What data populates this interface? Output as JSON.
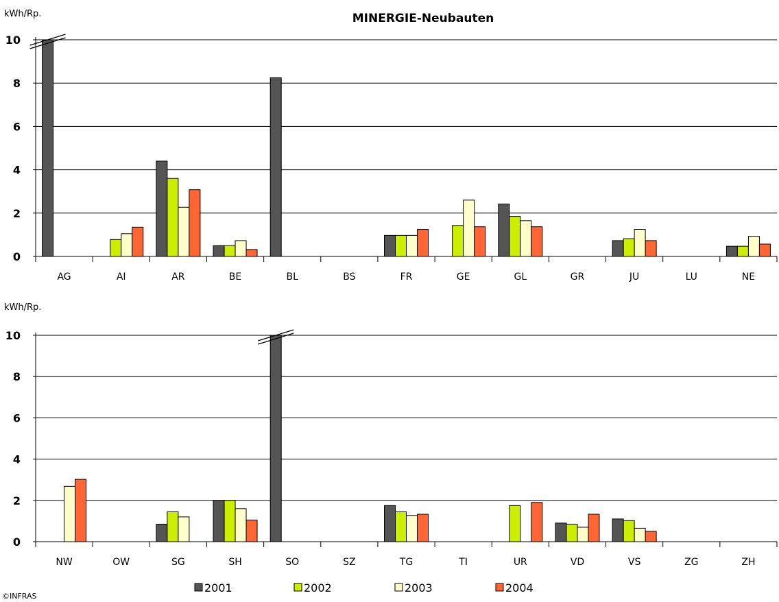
{
  "title": "MINERGIE-Neubauten",
  "credit": "©INFRAS",
  "colors": {
    "2001": "#555555",
    "2002": "#ccee00",
    "2003": "#ffffcc",
    "2004": "#ff6633"
  },
  "chart_data": [
    {
      "type": "bar",
      "title": "MINERGIE-Neubauten",
      "ylabel": "kWh/Rp.",
      "ylim": [
        0,
        10
      ],
      "yticks": [
        0,
        2,
        4,
        6,
        8,
        10
      ],
      "grid": true,
      "axis_break_on_tallest": true,
      "categories": [
        "AG",
        "AI",
        "AR",
        "BE",
        "BL",
        "BS",
        "FR",
        "GE",
        "GL",
        "GR",
        "JU",
        "LU",
        "NE"
      ],
      "series": [
        {
          "name": "2001",
          "values": [
            10.0,
            0,
            4.4,
            0.5,
            8.25,
            0,
            0.97,
            0,
            2.42,
            0,
            0.73,
            0,
            0.47
          ]
        },
        {
          "name": "2002",
          "values": [
            0,
            0.78,
            3.6,
            0.5,
            0,
            0,
            0.97,
            1.43,
            1.85,
            0,
            0.82,
            0,
            0.47
          ]
        },
        {
          "name": "2003",
          "values": [
            0,
            1.05,
            2.27,
            0.73,
            0,
            0,
            0.97,
            2.6,
            1.65,
            0,
            1.25,
            0,
            0.93
          ]
        },
        {
          "name": "2004",
          "values": [
            0,
            1.35,
            3.08,
            0.32,
            0,
            0,
            1.25,
            1.37,
            1.37,
            0,
            0.73,
            0,
            0.57
          ]
        }
      ]
    },
    {
      "type": "bar",
      "ylabel": "kWh/Rp.",
      "ylim": [
        0,
        10
      ],
      "yticks": [
        0,
        2,
        4,
        6,
        8,
        10
      ],
      "grid": true,
      "axis_break_on_tallest": true,
      "categories": [
        "NW",
        "OW",
        "SG",
        "SH",
        "SO",
        "SZ",
        "TG",
        "TI",
        "UR",
        "VD",
        "VS",
        "ZG",
        "ZH"
      ],
      "series": [
        {
          "name": "2001",
          "values": [
            0,
            0,
            0.85,
            2.0,
            10.0,
            0,
            1.75,
            0,
            0,
            0.9,
            1.1,
            0,
            0
          ]
        },
        {
          "name": "2002",
          "values": [
            0,
            0,
            1.45,
            2.0,
            0,
            0,
            1.45,
            0,
            1.75,
            0.85,
            1.02,
            0,
            0
          ]
        },
        {
          "name": "2003",
          "values": [
            2.68,
            0,
            1.2,
            1.6,
            0,
            0,
            1.27,
            0,
            0,
            0.7,
            0.65,
            0,
            0
          ]
        },
        {
          "name": "2004",
          "values": [
            3.02,
            0,
            0,
            1.05,
            0,
            0,
            1.33,
            0,
            1.9,
            1.33,
            0.5,
            0,
            0
          ]
        }
      ]
    }
  ],
  "legend": [
    {
      "label": "2001"
    },
    {
      "label": "2002"
    },
    {
      "label": "2003"
    },
    {
      "label": "2004"
    }
  ]
}
